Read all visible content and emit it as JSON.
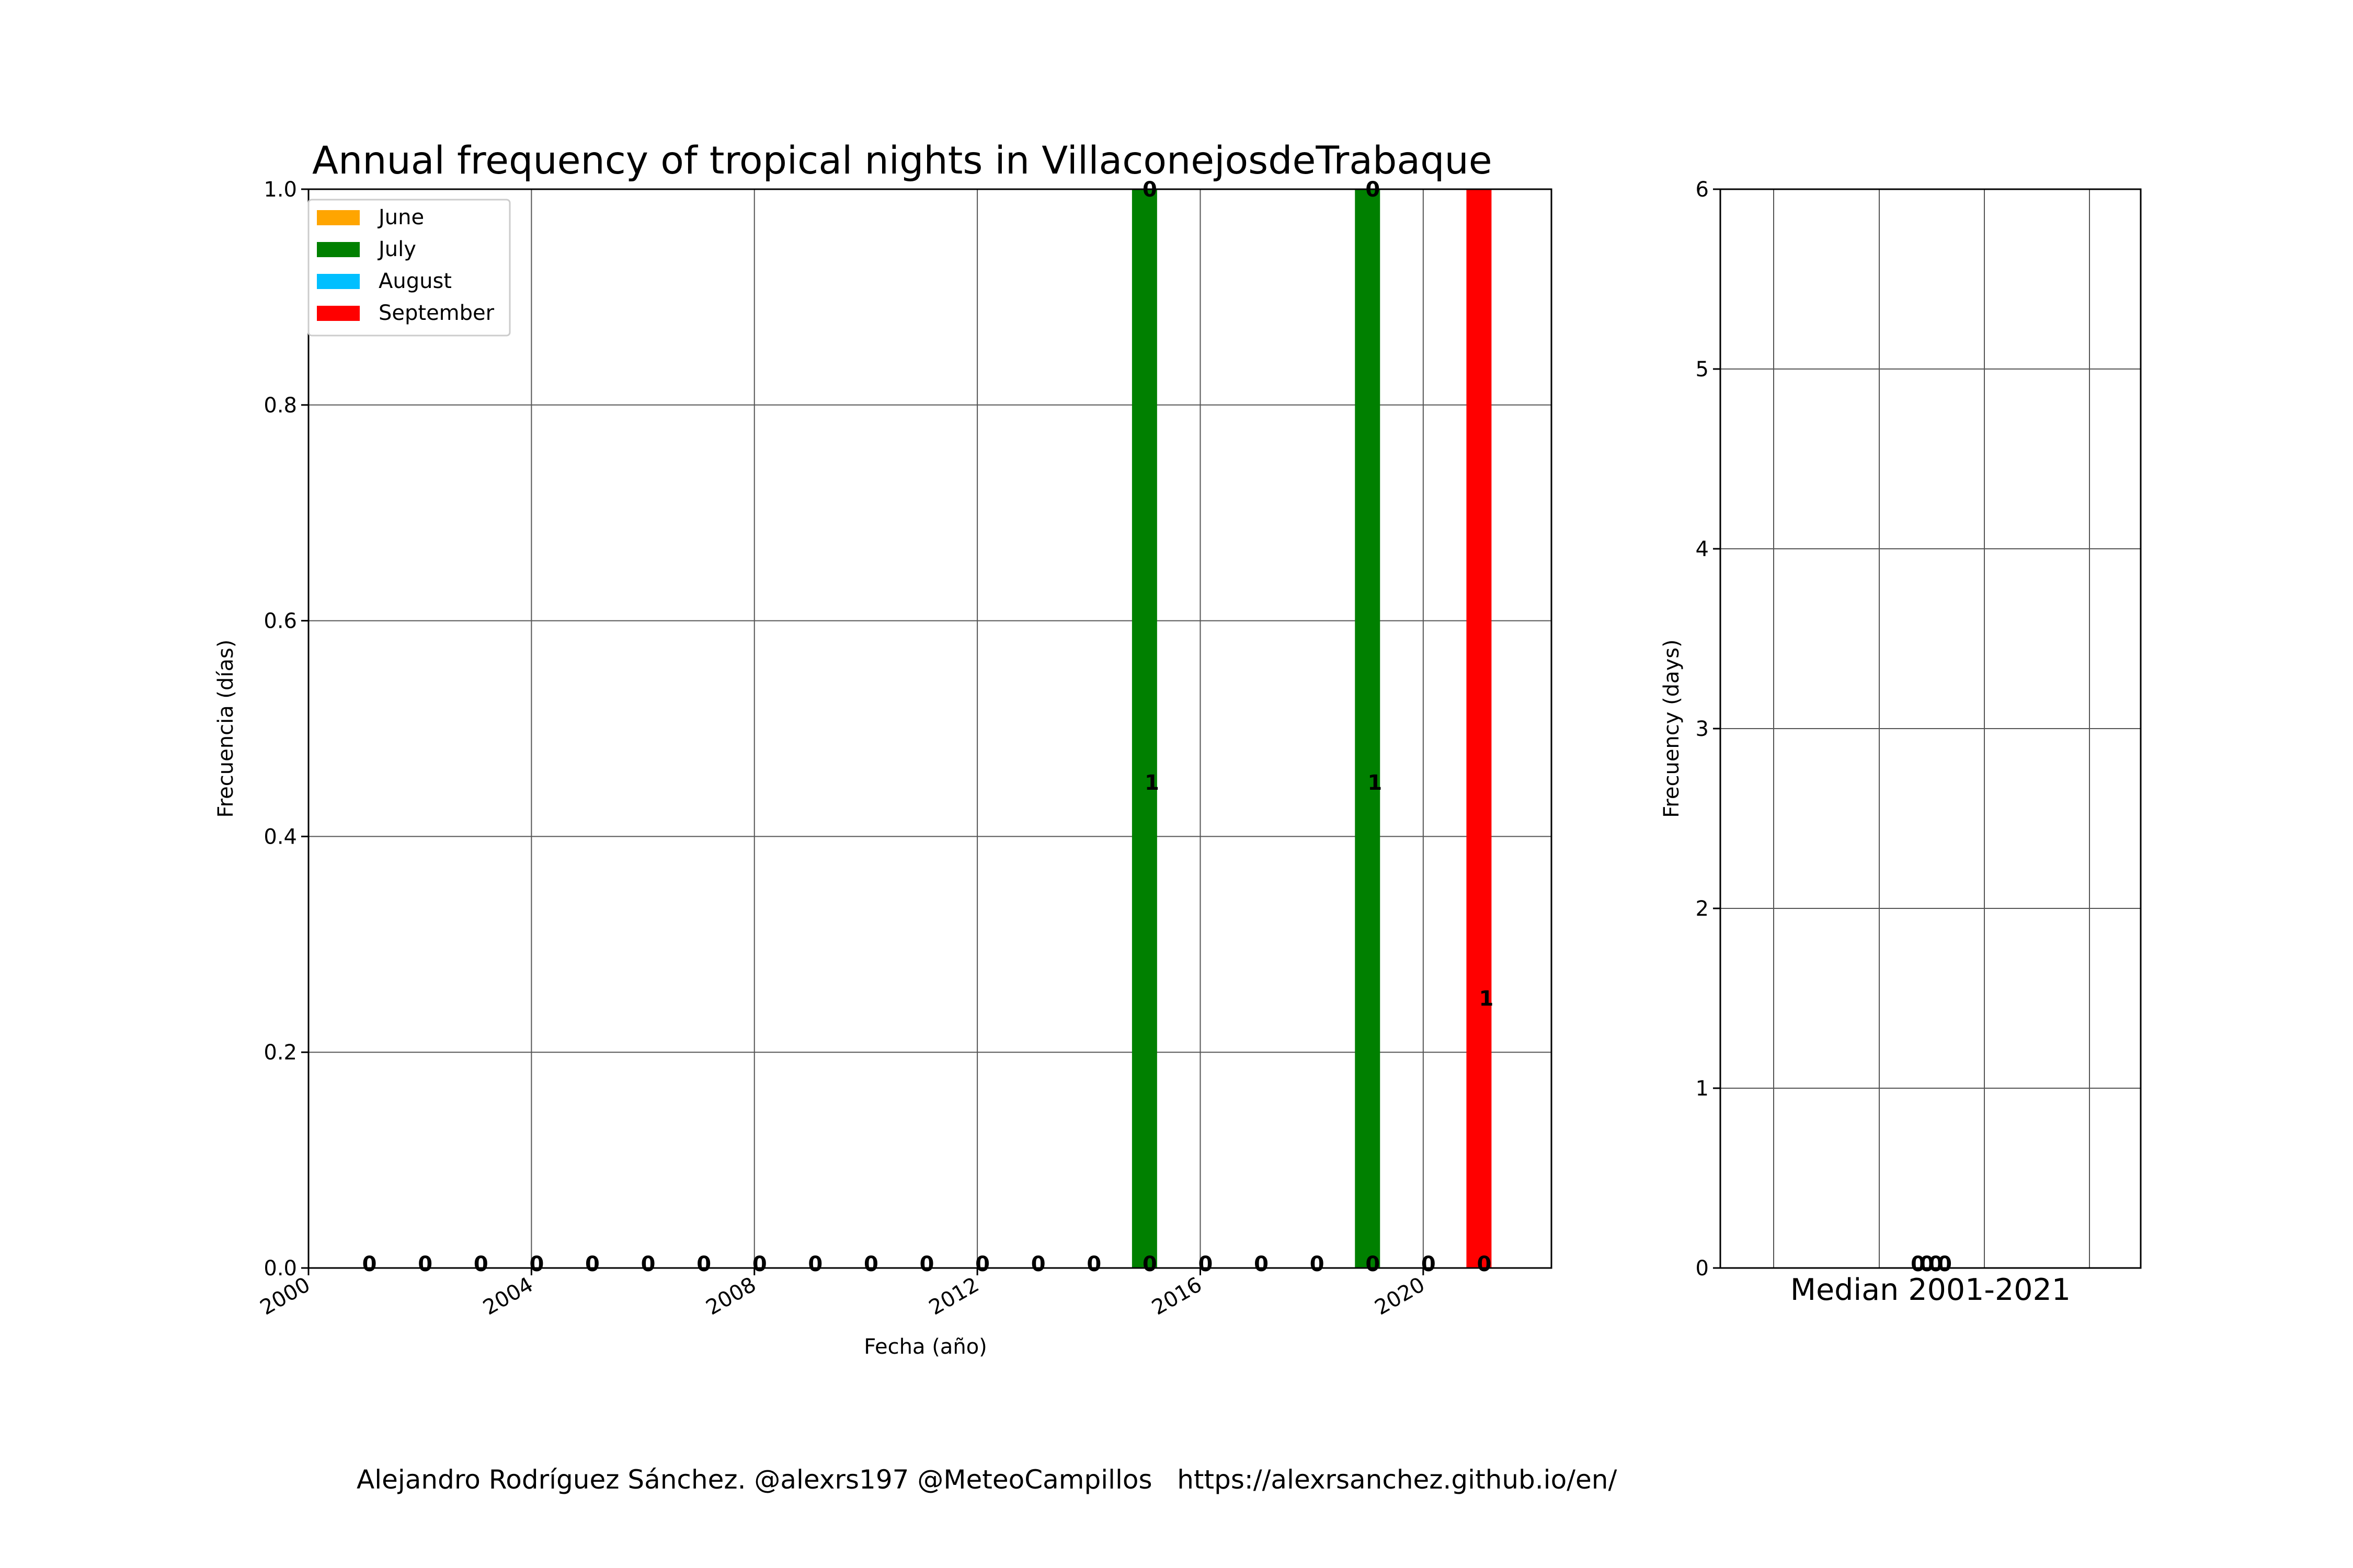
{
  "chart_data": [
    {
      "type": "bar",
      "stacked": true,
      "title": "Annual frequency of tropical nights in VillaconejosdeTrabaque",
      "xlabel": "Fecha (año)",
      "ylabel": "Frecuencia (días)",
      "xlim": [
        2000,
        2022.3
      ],
      "ylim": [
        0,
        1.0
      ],
      "xticks": [
        2000,
        2004,
        2008,
        2012,
        2016,
        2020
      ],
      "yticks": [
        0.0,
        0.2,
        0.4,
        0.6,
        0.8,
        1.0
      ],
      "grid": true,
      "legend": {
        "position": "top-left"
      },
      "x": [
        2001,
        2002,
        2003,
        2004,
        2005,
        2006,
        2007,
        2008,
        2009,
        2010,
        2011,
        2012,
        2013,
        2014,
        2015,
        2016,
        2017,
        2018,
        2019,
        2020,
        2021
      ],
      "series": [
        {
          "name": "June",
          "color": "#ffa500",
          "values": [
            0,
            0,
            0,
            0,
            0,
            0,
            0,
            0,
            0,
            0,
            0,
            0,
            0,
            0,
            0,
            0,
            0,
            0,
            0,
            0,
            0
          ]
        },
        {
          "name": "July",
          "color": "#008000",
          "values": [
            0,
            0,
            0,
            0,
            0,
            0,
            0,
            0,
            0,
            0,
            0,
            0,
            0,
            0,
            1,
            0,
            0,
            0,
            1,
            0,
            0
          ]
        },
        {
          "name": "August",
          "color": "#00bfff",
          "values": [
            0,
            0,
            0,
            0,
            0,
            0,
            0,
            0,
            0,
            0,
            0,
            0,
            0,
            0,
            0,
            0,
            0,
            0,
            0,
            0,
            0
          ]
        },
        {
          "name": "September",
          "color": "#ff0000",
          "values": [
            0,
            0,
            0,
            0,
            0,
            0,
            0,
            0,
            0,
            0,
            0,
            0,
            0,
            0,
            0,
            0,
            0,
            0,
            0,
            0,
            1
          ]
        }
      ],
      "totals": [
        0,
        0,
        0,
        0,
        0,
        0,
        0,
        0,
        0,
        0,
        0,
        0,
        0,
        0,
        1,
        0,
        0,
        0,
        1,
        0,
        1
      ]
    },
    {
      "type": "bar",
      "stacked": true,
      "xlabel": "Median 2001-2021",
      "ylabel": "Frecuency (days)",
      "ylim": [
        0,
        6
      ],
      "yticks": [
        0,
        1,
        2,
        3,
        4,
        5,
        6
      ],
      "grid": true,
      "values": [
        0,
        0,
        0,
        0
      ],
      "value_labels": [
        "0",
        "0",
        "0",
        "0"
      ]
    }
  ],
  "footer": "Alejandro Rodríguez Sánchez. @alexrs197 @MeteoCampillos   https://alexrsanchez.github.io/en/"
}
